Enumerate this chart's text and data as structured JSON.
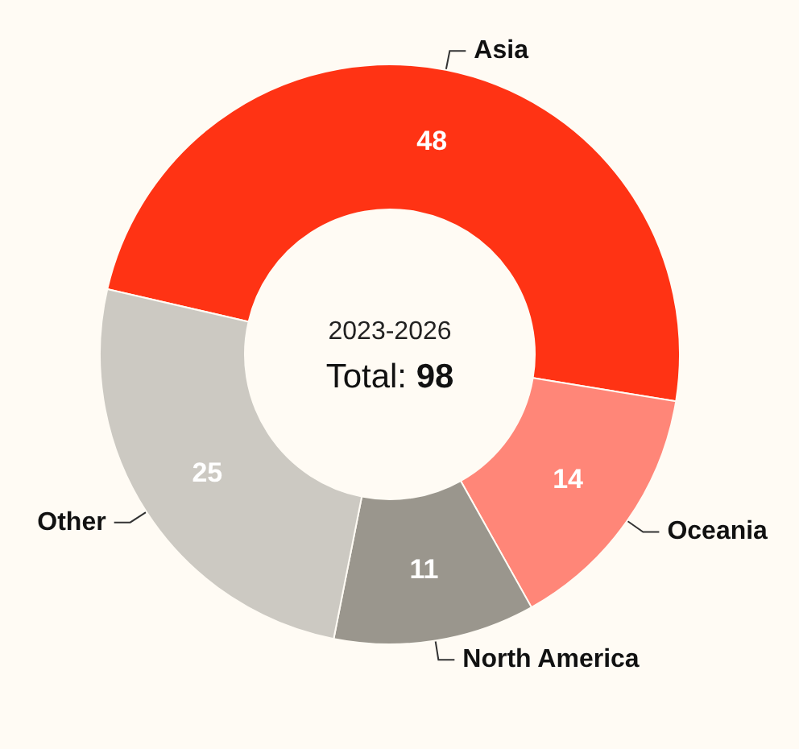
{
  "chart_data": {
    "type": "donut",
    "categories": [
      "Asia",
      "Oceania",
      "North America",
      "Other"
    ],
    "values": [
      48,
      14,
      11,
      25
    ],
    "colors": [
      "#ff3314",
      "#ff8678",
      "#9a968d",
      "#ccc9c2"
    ],
    "data_labels": true,
    "legend": false,
    "annotations": [
      "2023-2026",
      "Total: 98"
    ]
  }
}
